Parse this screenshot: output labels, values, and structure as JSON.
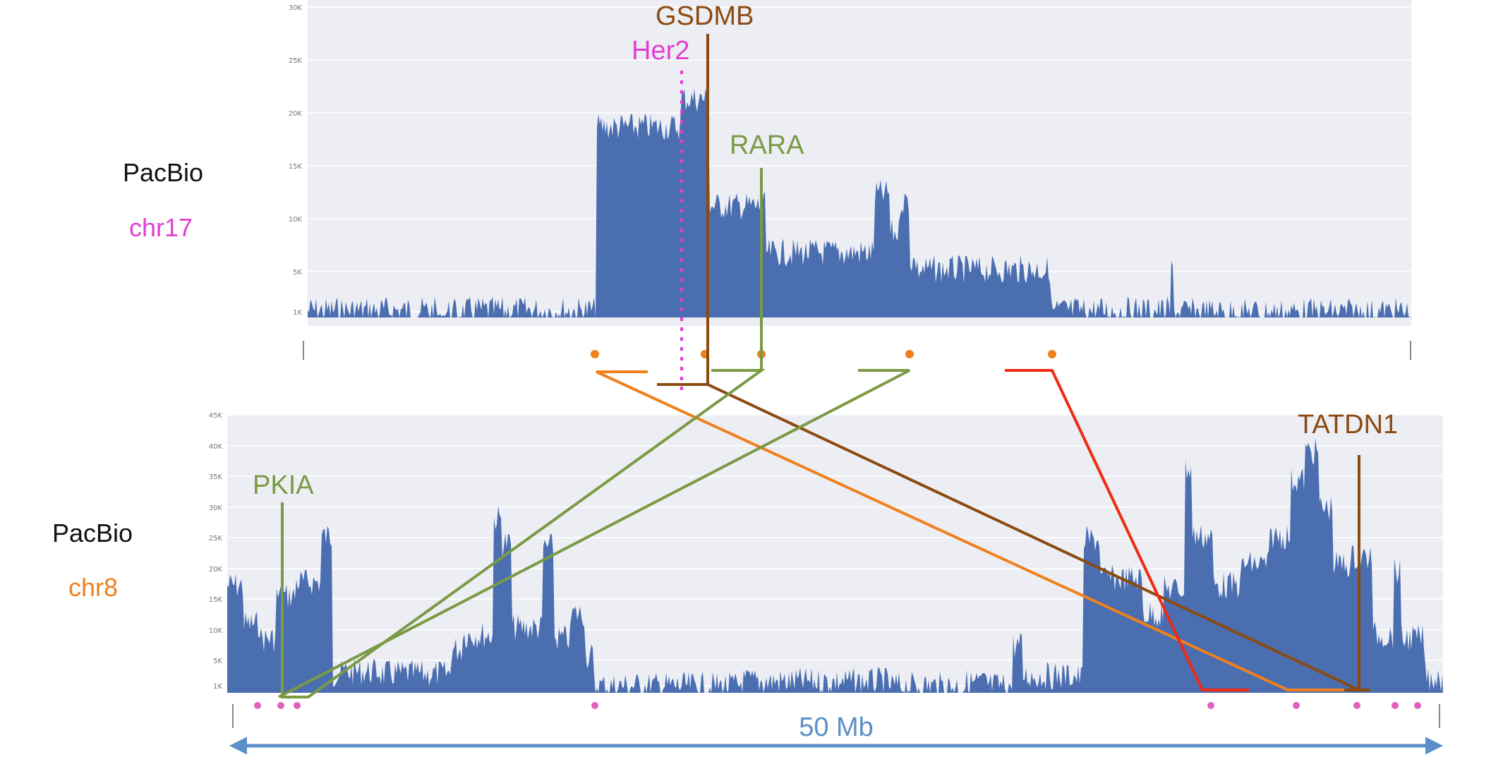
{
  "colors": {
    "coverage": "#4a6eb0",
    "panel_bg": "#eceef4",
    "grid": "#ffffff",
    "her2": "#e040d0",
    "gsdmb": "#8b4a10",
    "rara": "#7a9a44",
    "orange": "#f0801c",
    "red": "#f02a10",
    "pink_dot": "#e060c0",
    "scale": "#5b8fc7"
  },
  "top_track": {
    "platform": "PacBio",
    "chromosome": "chr17",
    "y_ticks": [
      "30K",
      "25K",
      "20K",
      "15K",
      "10K",
      "5K",
      "1K"
    ]
  },
  "bottom_track": {
    "platform": "PacBio",
    "chromosome": "chr8",
    "y_ticks": [
      "45K",
      "40K",
      "35K",
      "30K",
      "25K",
      "20K",
      "15K",
      "10K",
      "5K",
      "1K"
    ]
  },
  "genes": {
    "gsdmb": "GSDMB",
    "her2": "Her2",
    "rara": "RARA",
    "pkia": "PKIA",
    "tatdn1": "TATDN1"
  },
  "scale_bar": {
    "label": "50 Mb"
  }
}
